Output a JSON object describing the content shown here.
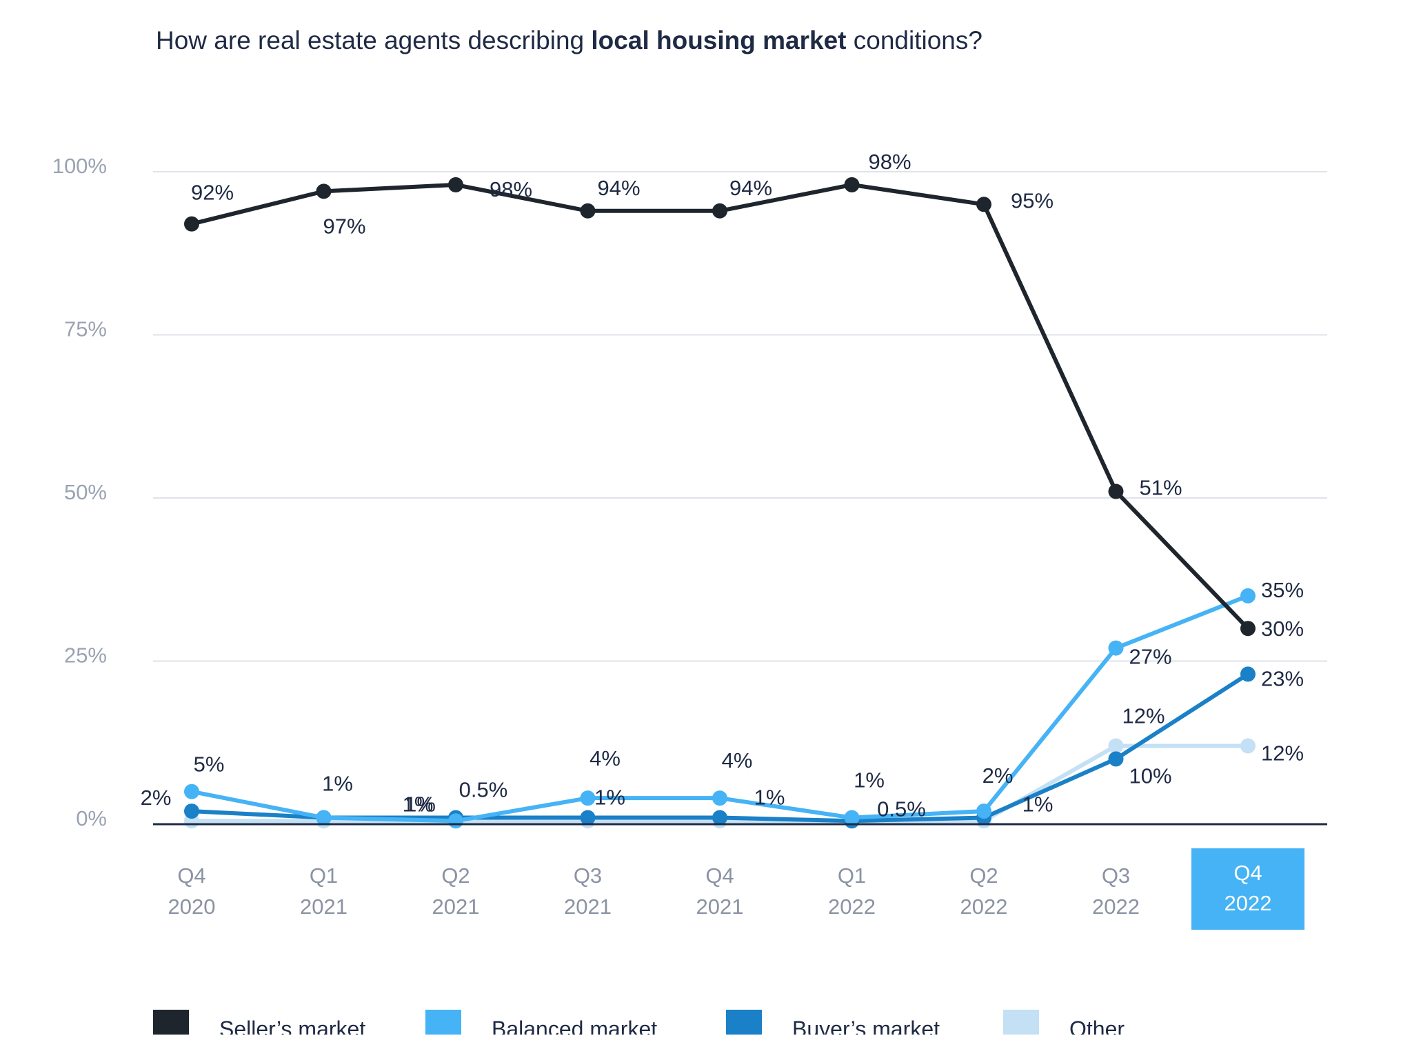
{
  "title": {
    "prefix": "How are real estate agents describing ",
    "bold": "local housing market",
    "suffix": " conditions?"
  },
  "chart_data": {
    "type": "line",
    "title": "How are real estate agents describing local housing market conditions?",
    "xlabel": "",
    "ylabel": "",
    "ylim": [
      0,
      100
    ],
    "yticks": [
      "0%",
      "25%",
      "50%",
      "75%",
      "100%"
    ],
    "grid": true,
    "legend_position": "bottom",
    "highlighted_category": 8,
    "categories": [
      [
        "Q4",
        "2020"
      ],
      [
        "Q1",
        "2021"
      ],
      [
        "Q2",
        "2021"
      ],
      [
        "Q3",
        "2021"
      ],
      [
        "Q4",
        "2021"
      ],
      [
        "Q1",
        "2022"
      ],
      [
        "Q2",
        "2022"
      ],
      [
        "Q3",
        "2022"
      ],
      [
        "Q4",
        "2022"
      ]
    ],
    "series": [
      {
        "name": "Seller’s market",
        "color": "#1e252d",
        "values": [
          92,
          97,
          98,
          94,
          94,
          98,
          95,
          51,
          30
        ],
        "labels": [
          "92%",
          "97%",
          "98%",
          "94%",
          "94%",
          "98%",
          "95%",
          "51%",
          "30%"
        ]
      },
      {
        "name": "Balanced market",
        "color": "#45b3f5",
        "values": [
          5,
          1,
          0.5,
          4,
          4,
          1,
          2,
          27,
          35
        ],
        "labels": [
          "5%",
          "1%",
          "0.5%",
          "4%",
          "4%",
          "1%",
          "2%",
          "27%",
          "35%"
        ]
      },
      {
        "name": "Buyer’s market",
        "color": "#1a80c7",
        "values": [
          2,
          1,
          1,
          1,
          1,
          0.5,
          1,
          10,
          23
        ],
        "labels": [
          "2%",
          "1%",
          "1%",
          "1%",
          "1%",
          "0.5%",
          "1%",
          "10%",
          "23%"
        ]
      },
      {
        "name": "Other",
        "color": "#c4e0f4",
        "values": [
          0.5,
          0.5,
          0.5,
          0.5,
          0.5,
          0.5,
          0.5,
          12,
          12
        ],
        "labels": [
          null,
          null,
          null,
          null,
          null,
          null,
          null,
          "12%",
          "12%"
        ]
      }
    ]
  },
  "colors": {
    "gridline": "#dfe3ea",
    "baseline": "#1f2a44",
    "highlight": "#45b3f5"
  }
}
